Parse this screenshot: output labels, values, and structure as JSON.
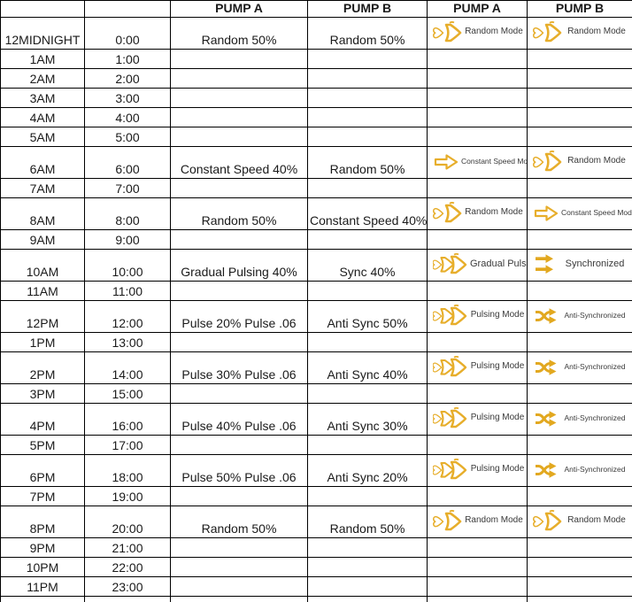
{
  "colors": {
    "accent_gold": "#E7AE2B",
    "accent_gold_solid": "#E2A81F",
    "grid": "#000000",
    "icon_label_text": "#3A3A3A"
  },
  "table": {
    "headers": {
      "hour": "",
      "time": "",
      "pump_a_text": "PUMP A",
      "pump_b_text": "PUMP B",
      "pump_a_icon": "PUMP A",
      "pump_b_icon": "PUMP B"
    },
    "rows": [
      {
        "label": "12MIDNIGHT",
        "time": "0:00",
        "pump_a": "Random 50%",
        "pump_b": "Random 50%",
        "icon_a": "random-mode-icon",
        "icon_a_label": "Random Mode",
        "icon_b": "random-mode-icon",
        "icon_b_label": "Random Mode",
        "tall": true
      },
      {
        "label": "1AM",
        "time": "1:00",
        "pump_a": "",
        "pump_b": "",
        "icon_a": "",
        "icon_a_label": "",
        "icon_b": "",
        "icon_b_label": "",
        "tall": false
      },
      {
        "label": "2AM",
        "time": "2:00",
        "pump_a": "",
        "pump_b": "",
        "icon_a": "",
        "icon_a_label": "",
        "icon_b": "",
        "icon_b_label": "",
        "tall": false
      },
      {
        "label": "3AM",
        "time": "3:00",
        "pump_a": "",
        "pump_b": "",
        "icon_a": "",
        "icon_a_label": "",
        "icon_b": "",
        "icon_b_label": "",
        "tall": false
      },
      {
        "label": "4AM",
        "time": "4:00",
        "pump_a": "",
        "pump_b": "",
        "icon_a": "",
        "icon_a_label": "",
        "icon_b": "",
        "icon_b_label": "",
        "tall": false
      },
      {
        "label": "5AM",
        "time": "5:00",
        "pump_a": "",
        "pump_b": "",
        "icon_a": "",
        "icon_a_label": "",
        "icon_b": "",
        "icon_b_label": "",
        "tall": false
      },
      {
        "label": "6AM",
        "time": "6:00",
        "pump_a": "Constant Speed 40%",
        "pump_b": "Random 50%",
        "icon_a": "constant-speed-mode-icon",
        "icon_a_label": "Constant Speed Mode",
        "icon_b": "random-mode-icon",
        "icon_b_label": "Random Mode",
        "tall": true
      },
      {
        "label": "7AM",
        "time": "7:00",
        "pump_a": "",
        "pump_b": "",
        "icon_a": "",
        "icon_a_label": "",
        "icon_b": "",
        "icon_b_label": "",
        "tall": false
      },
      {
        "label": "8AM",
        "time": "8:00",
        "pump_a": "Random 50%",
        "pump_b": "Constant Speed 40%",
        "icon_a": "random-mode-icon",
        "icon_a_label": "Random Mode",
        "icon_b": "constant-speed-mode-icon",
        "icon_b_label": "Constant Speed Mode",
        "tall": true
      },
      {
        "label": "9AM",
        "time": "9:00",
        "pump_a": "",
        "pump_b": "",
        "icon_a": "",
        "icon_a_label": "",
        "icon_b": "",
        "icon_b_label": "",
        "tall": false
      },
      {
        "label": "10AM",
        "time": "10:00",
        "pump_a": "Gradual Pulsing 40%",
        "pump_b": "Sync 40%",
        "icon_a": "gradual-pulsing-icon",
        "icon_a_label": "Gradual Pulsing",
        "icon_b": "synchronized-icon",
        "icon_b_label": "Synchronized",
        "tall": true
      },
      {
        "label": "11AM",
        "time": "11:00",
        "pump_a": "",
        "pump_b": "",
        "icon_a": "",
        "icon_a_label": "",
        "icon_b": "",
        "icon_b_label": "",
        "tall": false
      },
      {
        "label": "12PM",
        "time": "12:00",
        "pump_a": "Pulse 20% Pulse .06",
        "pump_b": "Anti Sync 50%",
        "icon_a": "pulsing-mode-icon",
        "icon_a_label": "Pulsing Mode",
        "icon_b": "anti-synchronized-icon",
        "icon_b_label": "Anti-Synchronized",
        "tall": true
      },
      {
        "label": "1PM",
        "time": "13:00",
        "pump_a": "",
        "pump_b": "",
        "icon_a": "",
        "icon_a_label": "",
        "icon_b": "",
        "icon_b_label": "",
        "tall": false
      },
      {
        "label": "2PM",
        "time": "14:00",
        "pump_a": "Pulse 30% Pulse .06",
        "pump_b": "Anti Sync 40%",
        "icon_a": "pulsing-mode-icon",
        "icon_a_label": "Pulsing Mode",
        "icon_b": "anti-synchronized-icon",
        "icon_b_label": "Anti-Synchronized",
        "tall": true
      },
      {
        "label": "3PM",
        "time": "15:00",
        "pump_a": "",
        "pump_b": "",
        "icon_a": "",
        "icon_a_label": "",
        "icon_b": "",
        "icon_b_label": "",
        "tall": false
      },
      {
        "label": "4PM",
        "time": "16:00",
        "pump_a": "Pulse 40% Pulse .06",
        "pump_b": "Anti Sync 30%",
        "icon_a": "pulsing-mode-icon",
        "icon_a_label": "Pulsing Mode",
        "icon_b": "anti-synchronized-icon",
        "icon_b_label": "Anti-Synchronized",
        "tall": true
      },
      {
        "label": "5PM",
        "time": "17:00",
        "pump_a": "",
        "pump_b": "",
        "icon_a": "",
        "icon_a_label": "",
        "icon_b": "",
        "icon_b_label": "",
        "tall": false
      },
      {
        "label": "6PM",
        "time": "18:00",
        "pump_a": "Pulse 50% Pulse .06",
        "pump_b": "Anti Sync 20%",
        "icon_a": "pulsing-mode-icon",
        "icon_a_label": "Pulsing Mode",
        "icon_b": "anti-synchronized-icon",
        "icon_b_label": "Anti-Synchronized",
        "tall": true
      },
      {
        "label": "7PM",
        "time": "19:00",
        "pump_a": "",
        "pump_b": "",
        "icon_a": "",
        "icon_a_label": "",
        "icon_b": "",
        "icon_b_label": "",
        "tall": false
      },
      {
        "label": "8PM",
        "time": "20:00",
        "pump_a": "Random 50%",
        "pump_b": "Random 50%",
        "icon_a": "random-mode-icon",
        "icon_a_label": "Random Mode",
        "icon_b": "random-mode-icon",
        "icon_b_label": "Random Mode",
        "tall": true
      },
      {
        "label": "9PM",
        "time": "21:00",
        "pump_a": "",
        "pump_b": "",
        "icon_a": "",
        "icon_a_label": "",
        "icon_b": "",
        "icon_b_label": "",
        "tall": false
      },
      {
        "label": "10PM",
        "time": "22:00",
        "pump_a": "",
        "pump_b": "",
        "icon_a": "",
        "icon_a_label": "",
        "icon_b": "",
        "icon_b_label": "",
        "tall": false
      },
      {
        "label": "11PM",
        "time": "23:00",
        "pump_a": "",
        "pump_b": "",
        "icon_a": "",
        "icon_a_label": "",
        "icon_b": "",
        "icon_b_label": "",
        "tall": false
      }
    ]
  }
}
